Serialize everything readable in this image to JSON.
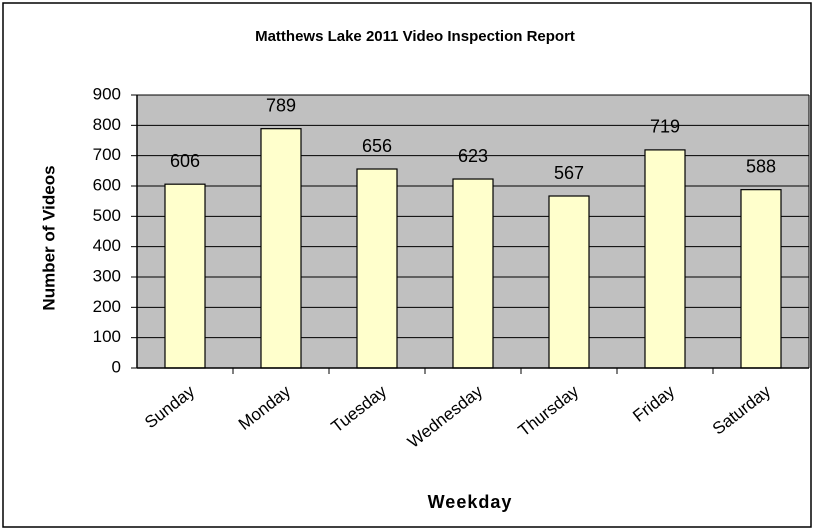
{
  "chart_data": {
    "type": "bar",
    "title": "Matthews Lake 2011 Video Inspection Report",
    "x_label": "Weekday",
    "y_label": "Number of Videos",
    "categories": [
      "Sunday",
      "Monday",
      "Tuesday",
      "Wednesday",
      "Thursday",
      "Friday",
      "Saturday"
    ],
    "values": [
      606,
      789,
      656,
      623,
      567,
      719,
      588
    ],
    "color": "#ffffcc",
    "ylim": [
      0,
      900
    ],
    "yticks": [
      0,
      100,
      200,
      300,
      400,
      500,
      600,
      700,
      800,
      900
    ],
    "grid": true
  }
}
